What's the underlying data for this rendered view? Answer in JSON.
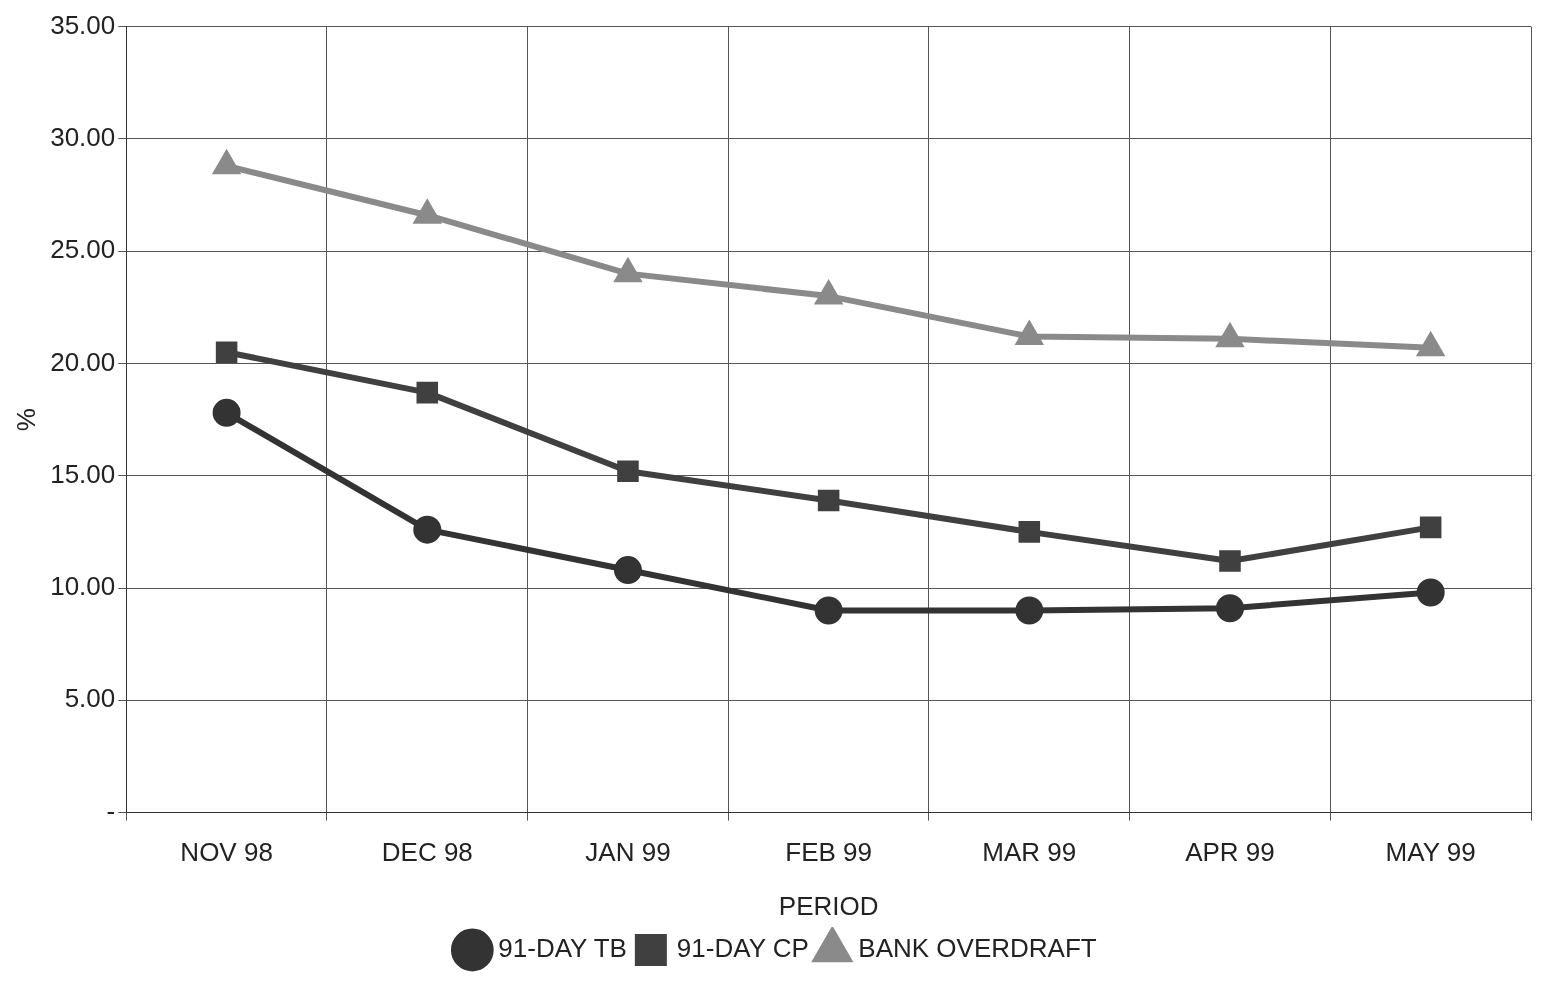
{
  "chart_data": {
    "type": "line",
    "xlabel": "PERIOD",
    "ylabel": "%",
    "categories": [
      "NOV 98",
      "DEC 98",
      "JAN 99",
      "FEB 99",
      "MAR 99",
      "APR 99",
      "MAY 99"
    ],
    "series": [
      {
        "name": "91-DAY TB",
        "color": "#333333",
        "marker": "circle",
        "values": [
          17.8,
          12.6,
          10.8,
          9.0,
          9.0,
          9.1,
          9.8
        ]
      },
      {
        "name": "91-DAY CP",
        "color": "#404040",
        "marker": "square",
        "values": [
          20.5,
          18.7,
          15.2,
          13.9,
          12.5,
          11.2,
          12.7
        ]
      },
      {
        "name": "BANK OVERDRAFT",
        "color": "#8a8a8a",
        "marker": "triangle",
        "values": [
          28.8,
          26.6,
          24.0,
          23.0,
          21.2,
          21.1,
          20.7
        ]
      }
    ],
    "ylim": [
      0,
      35
    ],
    "yticks": [
      {
        "value": 0,
        "label": "-"
      },
      {
        "value": 5,
        "label": "5.00"
      },
      {
        "value": 10,
        "label": "10.00"
      },
      {
        "value": 15,
        "label": "15.00"
      },
      {
        "value": 20,
        "label": "20.00"
      },
      {
        "value": 25,
        "label": "25.00"
      },
      {
        "value": 30,
        "label": "30.00"
      },
      {
        "value": 35,
        "label": "35.00"
      }
    ],
    "grid": true,
    "legend": "bottom",
    "line_style": "solid"
  }
}
